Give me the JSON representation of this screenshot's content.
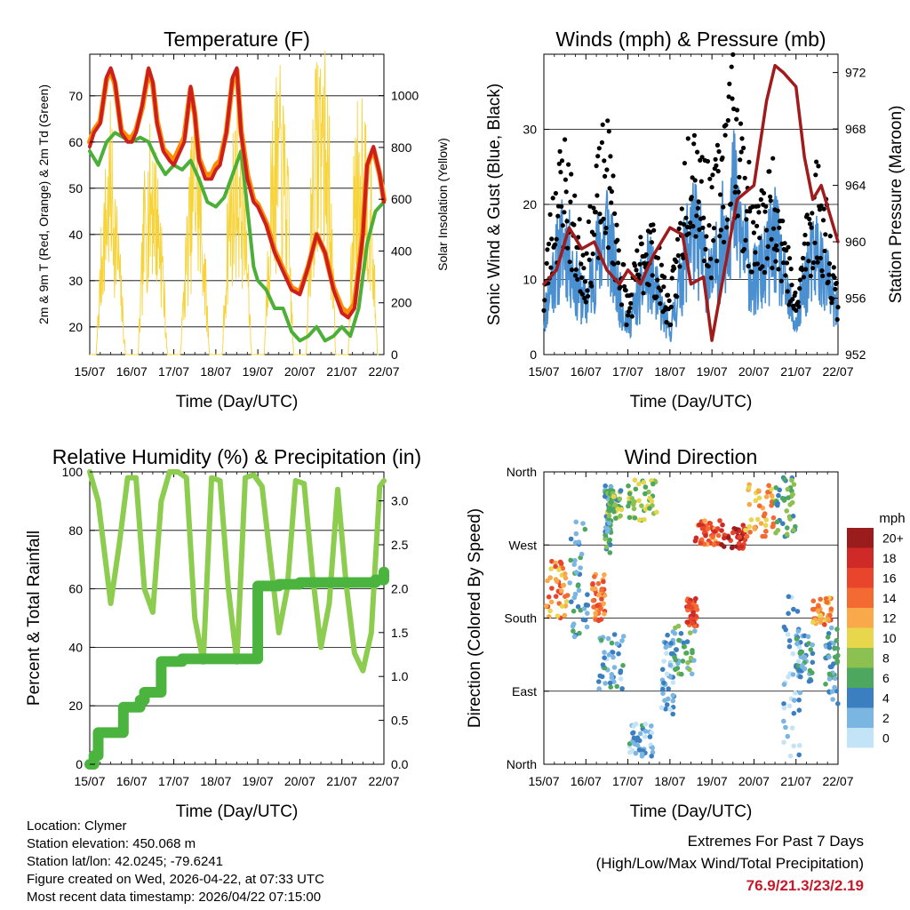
{
  "chart_data": [
    {
      "type": "line",
      "title": "Temperature (F)",
      "xlabel": "Time (Day/UTC)",
      "ylabel_left": "2m & 9m T (Red, Orange) & 2m Td (Green)",
      "ylabel_right": "Solar Insolation (Yellow)",
      "ylim": [
        14,
        79
      ],
      "y2lim": [
        0,
        1160
      ],
      "xlim": [
        0,
        7
      ],
      "x_ticks": [
        "15/07",
        "16/07",
        "17/07",
        "18/07",
        "19/07",
        "20/07",
        "21/07",
        "22/07"
      ],
      "y_ticks": [
        20,
        30,
        40,
        50,
        60,
        70
      ],
      "y2_ticks": [
        0,
        200,
        400,
        600,
        800,
        1000
      ],
      "series": [
        {
          "name": "2m T",
          "color": "#cc2020",
          "x": [
            0,
            0.1,
            0.25,
            0.4,
            0.5,
            0.6,
            0.75,
            0.9,
            1.0,
            1.1,
            1.25,
            1.4,
            1.5,
            1.6,
            1.75,
            1.9,
            2.0,
            2.1,
            2.25,
            2.4,
            2.5,
            2.6,
            2.75,
            2.9,
            3.0,
            3.1,
            3.25,
            3.4,
            3.5,
            3.6,
            3.75,
            3.9,
            4.0,
            4.2,
            4.4,
            4.6,
            4.8,
            5.0,
            5.2,
            5.4,
            5.6,
            5.8,
            6.0,
            6.15,
            6.3,
            6.5,
            6.6,
            6.75,
            6.9,
            7.0
          ],
          "values": [
            59,
            62,
            64,
            74,
            76,
            73,
            62,
            60,
            60,
            62,
            68,
            76,
            73,
            64,
            58,
            56,
            55,
            57,
            60,
            72,
            66,
            56,
            52,
            52,
            54,
            55,
            62,
            74,
            76,
            62,
            52,
            47,
            46,
            42,
            36,
            32,
            28,
            27,
            33,
            40,
            36,
            28,
            23,
            22,
            24,
            40,
            55,
            59,
            53,
            47
          ]
        },
        {
          "name": "9m T",
          "color": "#ff8c00",
          "x": [
            0,
            0.1,
            0.25,
            0.4,
            0.5,
            0.6,
            0.75,
            0.9,
            1.0,
            1.1,
            1.25,
            1.4,
            1.5,
            1.6,
            1.75,
            1.9,
            2.0,
            2.1,
            2.25,
            2.4,
            2.5,
            2.6,
            2.75,
            2.9,
            3.0,
            3.1,
            3.25,
            3.4,
            3.5,
            3.6,
            3.75,
            3.9,
            4.0,
            4.2,
            4.4,
            4.6,
            4.8,
            5.0,
            5.2,
            5.4,
            5.6,
            5.8,
            6.0,
            6.15,
            6.3,
            6.5,
            6.6,
            6.75,
            6.9,
            7.0
          ],
          "values": [
            60,
            62.5,
            64.5,
            73.5,
            75.5,
            72.5,
            62.5,
            61,
            61,
            62.5,
            67.5,
            75.5,
            72.5,
            64.5,
            58.5,
            57,
            56,
            58,
            61,
            71.5,
            66,
            56.5,
            53,
            53,
            55,
            56,
            62,
            73.5,
            75.5,
            62.5,
            53,
            47.5,
            46.5,
            42.5,
            36.5,
            32.5,
            28.5,
            27.5,
            33,
            40,
            36,
            28.5,
            24,
            23,
            25,
            40.5,
            55,
            58.5,
            53,
            47.5
          ]
        },
        {
          "name": "2m Td",
          "color": "#4caf38",
          "x": [
            0,
            0.2,
            0.4,
            0.6,
            0.8,
            1.0,
            1.2,
            1.4,
            1.6,
            1.8,
            2.0,
            2.2,
            2.4,
            2.6,
            2.8,
            3.0,
            3.2,
            3.4,
            3.6,
            3.7,
            3.9,
            4.0,
            4.2,
            4.4,
            4.6,
            4.8,
            5.0,
            5.2,
            5.4,
            5.6,
            5.8,
            6.0,
            6.2,
            6.4,
            6.6,
            6.8,
            7.0
          ],
          "values": [
            58,
            55,
            60,
            62,
            61,
            60,
            61,
            60,
            56,
            53,
            55,
            54,
            56,
            52,
            47,
            46,
            48,
            53,
            58,
            50,
            33,
            30,
            28,
            24,
            24,
            19,
            17,
            18,
            20,
            17,
            18,
            20,
            18,
            24,
            38,
            45,
            47
          ]
        },
        {
          "name": "Solar Insolation",
          "axis": "right",
          "color": "#f7d33a",
          "x": [
            0.15,
            0.3,
            0.5,
            0.7,
            0.85,
            1.15,
            1.3,
            1.5,
            1.7,
            1.85,
            2.15,
            2.3,
            2.5,
            2.7,
            2.85,
            3.15,
            3.3,
            3.5,
            3.7,
            3.85,
            4.15,
            4.3,
            4.5,
            4.7,
            4.85,
            5.15,
            5.3,
            5.5,
            5.7,
            5.85,
            6.15,
            6.3,
            6.5,
            6.7,
            6.85
          ],
          "values": [
            0,
            500,
            800,
            400,
            0,
            0,
            600,
            780,
            500,
            0,
            0,
            450,
            840,
            500,
            0,
            0,
            600,
            820,
            600,
            0,
            0,
            700,
            930,
            700,
            0,
            0,
            800,
            1100,
            800,
            0,
            0,
            750,
            900,
            600,
            0
          ]
        }
      ]
    },
    {
      "type": "scatter",
      "title": "Winds (mph) & Pressure (mb)",
      "xlabel": "Time (Day/UTC)",
      "ylabel_left": "Sonic Wind & Gust (Blue, Black)",
      "ylabel_right": "Station Pressure (Maroon)",
      "ylim": [
        0,
        40
      ],
      "y2lim": [
        952,
        973.3
      ],
      "xlim": [
        0,
        7
      ],
      "x_ticks": [
        "15/07",
        "16/07",
        "17/07",
        "18/07",
        "19/07",
        "20/07",
        "21/07",
        "22/07"
      ],
      "y_ticks": [
        0,
        10,
        20,
        30
      ],
      "y2_ticks": [
        952,
        956,
        960,
        964,
        968,
        972
      ],
      "series": [
        {
          "name": "Sonic Wind",
          "color": "#4a8fd0",
          "x": [
            0,
            0.25,
            0.5,
            0.75,
            1.0,
            1.25,
            1.5,
            1.75,
            2.0,
            2.25,
            2.5,
            2.75,
            3.0,
            3.25,
            3.5,
            3.75,
            4.0,
            4.25,
            4.5,
            4.75,
            5.0,
            5.25,
            5.5,
            5.75,
            6.0,
            6.25,
            6.5,
            6.75,
            7.0
          ],
          "values": [
            5,
            12,
            16,
            10,
            7,
            13,
            18,
            9,
            4,
            8,
            12,
            7,
            3,
            10,
            18,
            14,
            10,
            16,
            22,
            15,
            10,
            12,
            16,
            9,
            4,
            11,
            14,
            10,
            5
          ]
        },
        {
          "name": "Gust",
          "color": "#000000",
          "x": [
            0,
            0.25,
            0.5,
            0.75,
            1.0,
            1.25,
            1.5,
            1.75,
            2.0,
            2.25,
            2.5,
            2.75,
            3.0,
            3.25,
            3.5,
            3.75,
            4.0,
            4.25,
            4.5,
            4.75,
            5.0,
            5.25,
            5.5,
            5.75,
            6.0,
            6.25,
            6.5,
            6.75,
            7.0
          ],
          "values": [
            8,
            20,
            24,
            16,
            12,
            20,
            26,
            15,
            6,
            12,
            16,
            11,
            6,
            16,
            30,
            23,
            18,
            26,
            33,
            24,
            16,
            18,
            22,
            14,
            6,
            16,
            21,
            16,
            7
          ]
        },
        {
          "name": "Station Pressure",
          "axis": "right",
          "color": "#a01c1c",
          "x": [
            0,
            0.3,
            0.6,
            0.9,
            1.2,
            1.5,
            1.8,
            2.0,
            2.3,
            2.6,
            3.0,
            3.3,
            3.5,
            3.8,
            4.0,
            4.3,
            4.6,
            5.0,
            5.3,
            5.5,
            5.7,
            6.0,
            6.2,
            6.4,
            6.6,
            6.8,
            7.0
          ],
          "values": [
            957,
            958,
            961,
            959.5,
            960,
            958,
            957,
            958,
            957,
            959,
            961,
            960.5,
            957,
            957.5,
            953,
            958,
            963,
            964,
            970,
            972.5,
            972,
            971,
            966,
            963,
            964,
            962,
            960
          ]
        }
      ]
    },
    {
      "type": "line",
      "title": "Relative Humidity (%) & Precipitation (in)",
      "xlabel": "Time (Day/UTC)",
      "ylabel_left": "Percent & Total Rainfall",
      "ylim": [
        0,
        100
      ],
      "y2lim": [
        0,
        3.33
      ],
      "xlim": [
        0,
        7
      ],
      "x_ticks": [
        "15/07",
        "16/07",
        "17/07",
        "18/07",
        "19/07",
        "20/07",
        "21/07",
        "22/07"
      ],
      "y_ticks": [
        0,
        20,
        40,
        60,
        80,
        100
      ],
      "y2_ticks": [
        "0.0",
        "0.5",
        "1.0",
        "1.5",
        "2.0",
        "2.5",
        "3.0"
      ],
      "series": [
        {
          "name": "Relative Humidity",
          "color": "#8ccc4e",
          "x": [
            0,
            0.2,
            0.5,
            0.7,
            0.9,
            1.1,
            1.3,
            1.5,
            1.7,
            1.9,
            2.1,
            2.3,
            2.5,
            2.7,
            2.9,
            3.1,
            3.3,
            3.5,
            3.7,
            3.9,
            4.1,
            4.3,
            4.5,
            4.7,
            4.9,
            5.1,
            5.3,
            5.5,
            5.7,
            5.9,
            6.1,
            6.3,
            6.5,
            6.7,
            6.9,
            7.0
          ],
          "values": [
            100,
            90,
            55,
            75,
            98,
            98,
            60,
            52,
            90,
            100,
            100,
            98,
            50,
            35,
            98,
            97,
            60,
            35,
            98,
            99,
            95,
            70,
            45,
            60,
            97,
            96,
            65,
            40,
            55,
            94,
            62,
            38,
            32,
            45,
            95,
            97
          ]
        },
        {
          "name": "Total Precipitation",
          "axis": "right",
          "color": "#4ab43e",
          "x": [
            0,
            0.1,
            0.2,
            0.7,
            0.8,
            1.1,
            1.2,
            1.3,
            1.6,
            1.7,
            2.1,
            2.2,
            3.4,
            3.5,
            4.0,
            4.5,
            5.0,
            5.5,
            6.0,
            6.5,
            6.8,
            7.0
          ],
          "values": [
            0,
            0.1,
            0.36,
            0.36,
            0.65,
            0.65,
            0.73,
            0.82,
            0.82,
            1.17,
            1.17,
            1.2,
            1.2,
            1.2,
            2.03,
            2.05,
            2.07,
            2.07,
            2.07,
            2.07,
            2.1,
            2.19
          ]
        }
      ]
    },
    {
      "type": "scatter",
      "title": "Wind Direction",
      "xlabel": "Time (Day/UTC)",
      "ylabel": "Direction (Colored By Speed)",
      "xlim": [
        0,
        7
      ],
      "ylim": [
        0,
        360
      ],
      "x_ticks": [
        "15/07",
        "16/07",
        "17/07",
        "18/07",
        "19/07",
        "20/07",
        "21/07",
        "22/07"
      ],
      "y_tick_labels": [
        "North",
        "East",
        "South",
        "West",
        "North"
      ],
      "y_tick_values": [
        0,
        90,
        180,
        270,
        360
      ],
      "legend_title": "mph",
      "legend_labels": [
        "20+",
        "18",
        "16",
        "14",
        "12",
        "10",
        "8",
        "6",
        "4",
        "2",
        "0"
      ],
      "legend_colors": [
        "#9b1c1c",
        "#cf2a27",
        "#e8452c",
        "#f36b32",
        "#f9a84a",
        "#e8d64d",
        "#8cc152",
        "#4ea75e",
        "#3c7fc0",
        "#7bb6e3",
        "#c3e4f7"
      ],
      "clusters": [
        {
          "x": [
            0.05,
            0.6
          ],
          "dir": [
            180,
            250
          ],
          "speed": 13
        },
        {
          "x": [
            0.6,
            1.05
          ],
          "dir": [
            150,
            300
          ],
          "speed": 4
        },
        {
          "x": [
            1.15,
            1.45
          ],
          "dir": [
            175,
            235
          ],
          "speed": 14
        },
        {
          "x": [
            1.3,
            1.9
          ],
          "dir": [
            90,
            160
          ],
          "speed": 3
        },
        {
          "x": [
            1.45,
            1.6
          ],
          "dir": [
            260,
            345
          ],
          "speed": 5
        },
        {
          "x": [
            1.5,
            1.85
          ],
          "dir": [
            300,
            340
          ],
          "speed": 7
        },
        {
          "x": [
            2.0,
            2.7
          ],
          "dir": [
            300,
            350
          ],
          "speed": 8
        },
        {
          "x": [
            2.0,
            2.6
          ],
          "dir": [
            10,
            50
          ],
          "speed": 3
        },
        {
          "x": [
            2.8,
            3.1
          ],
          "dir": [
            60,
            160
          ],
          "speed": 2
        },
        {
          "x": [
            3.0,
            3.6
          ],
          "dir": [
            110,
            175
          ],
          "speed": 5
        },
        {
          "x": [
            3.4,
            3.65
          ],
          "dir": [
            170,
            205
          ],
          "speed": 16
        },
        {
          "x": [
            3.6,
            4.2
          ],
          "dir": [
            270,
            300
          ],
          "speed": 15
        },
        {
          "x": [
            4.2,
            4.8
          ],
          "dir": [
            265,
            295
          ],
          "speed": 18
        },
        {
          "x": [
            4.8,
            5.5
          ],
          "dir": [
            280,
            345
          ],
          "speed": 12
        },
        {
          "x": [
            5.5,
            6.0
          ],
          "dir": [
            280,
            355
          ],
          "speed": 6
        },
        {
          "x": [
            5.7,
            6.1
          ],
          "dir": [
            10,
            220
          ],
          "speed": 2
        },
        {
          "x": [
            6.0,
            6.4
          ],
          "dir": [
            100,
            165
          ],
          "speed": 4
        },
        {
          "x": [
            6.4,
            6.85
          ],
          "dir": [
            170,
            205
          ],
          "speed": 13
        },
        {
          "x": [
            6.7,
            7.0
          ],
          "dir": [
            70,
            170
          ],
          "speed": 4
        }
      ]
    }
  ],
  "footer": {
    "location": "Location: Clymer",
    "elevation": "Station elevation: 450.068 m",
    "latlon": "Station lat/lon: 42.0245; -79.6241",
    "created": "Figure created on Wed, 2026-04-22, at 07:33 UTC",
    "timestamp": "Most recent data timestamp: 2026/04/22 07:15:00"
  },
  "extremes": {
    "title": "Extremes For Past 7 Days",
    "subtitle": "(High/Low/Max Wind/Total Precipitation)",
    "values": "76.9/21.3/23/2.19"
  }
}
